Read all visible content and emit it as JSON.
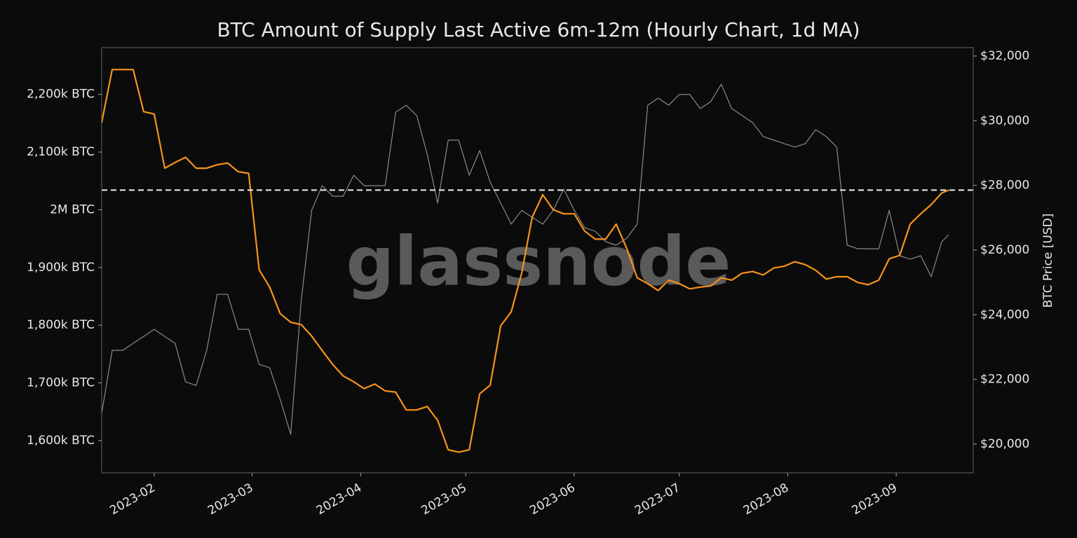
{
  "chart_data": {
    "type": "line",
    "title": "BTC Amount of Supply Last Active 6m-12m (Hourly Chart, 1d MA)",
    "y2label": "BTC Price [USD]",
    "watermark": "glassnode",
    "x": [
      "2023-01-17",
      "2023-01-20",
      "2023-01-23",
      "2023-01-26",
      "2023-01-29",
      "2023-02-01",
      "2023-02-04",
      "2023-02-07",
      "2023-02-10",
      "2023-02-13",
      "2023-02-16",
      "2023-02-19",
      "2023-02-22",
      "2023-02-25",
      "2023-02-28",
      "2023-03-03",
      "2023-03-06",
      "2023-03-09",
      "2023-03-12",
      "2023-03-15",
      "2023-03-18",
      "2023-03-21",
      "2023-03-24",
      "2023-03-27",
      "2023-03-30",
      "2023-04-02",
      "2023-04-05",
      "2023-04-08",
      "2023-04-11",
      "2023-04-14",
      "2023-04-17",
      "2023-04-20",
      "2023-04-23",
      "2023-04-26",
      "2023-04-29",
      "2023-05-02",
      "2023-05-05",
      "2023-05-08",
      "2023-05-11",
      "2023-05-14",
      "2023-05-17",
      "2023-05-20",
      "2023-05-23",
      "2023-05-26",
      "2023-05-29",
      "2023-06-01",
      "2023-06-04",
      "2023-06-07",
      "2023-06-10",
      "2023-06-13",
      "2023-06-16",
      "2023-06-19",
      "2023-06-22",
      "2023-06-25",
      "2023-06-28",
      "2023-07-01",
      "2023-07-04",
      "2023-07-07",
      "2023-07-10",
      "2023-07-13",
      "2023-07-16",
      "2023-07-19",
      "2023-07-22",
      "2023-07-25",
      "2023-07-28",
      "2023-07-31",
      "2023-08-03",
      "2023-08-06",
      "2023-08-09",
      "2023-08-12",
      "2023-08-15",
      "2023-08-18",
      "2023-08-21",
      "2023-08-24",
      "2023-08-27",
      "2023-08-30",
      "2023-09-02",
      "2023-09-05",
      "2023-09-08",
      "2023-09-11",
      "2023-09-14",
      "2023-09-16"
    ],
    "series": [
      {
        "color": "#f7931a",
        "values": [
          2151000,
          2243000,
          2243000,
          2243000,
          2170000,
          2166000,
          2072000,
          2082000,
          2091000,
          2072000,
          2072000,
          2078000,
          2081000,
          2066000,
          2063000,
          1896000,
          1866000,
          1820000,
          1805000,
          1801000,
          1781000,
          1756000,
          1732000,
          1712000,
          1702000,
          1690000,
          1698000,
          1686000,
          1684000,
          1653000,
          1653000,
          1659000,
          1635000,
          1584000,
          1580000,
          1584000,
          1681000,
          1696000,
          1799000,
          1823000,
          1890000,
          1987000,
          2026000,
          2000000,
          1993000,
          1993000,
          1963000,
          1949000,
          1949000,
          1975000,
          1933000,
          1882000,
          1872000,
          1860000,
          1878000,
          1872000,
          1863000,
          1866000,
          1868000,
          1882000,
          1878000,
          1890000,
          1893000,
          1887000,
          1899000,
          1902000,
          1910000,
          1905000,
          1895000,
          1880000,
          1884000,
          1884000,
          1874000,
          1870000,
          1878000,
          1915000,
          1921000,
          1975000,
          1993000,
          2009000,
          2029000,
          2034000
        ]
      },
      {
        "color": "#8a8a8a",
        "axis": "y2",
        "values": [
          20950,
          22900,
          22900,
          23115,
          23330,
          23550,
          23330,
          23115,
          21920,
          21815,
          22900,
          24630,
          24630,
          23550,
          23550,
          22465,
          22360,
          21380,
          20300,
          24415,
          27230,
          27990,
          27665,
          27665,
          28315,
          27990,
          27990,
          27990,
          30265,
          30480,
          30160,
          28965,
          27450,
          29400,
          29400,
          28315,
          29075,
          28100,
          27450,
          26800,
          27230,
          27015,
          26800,
          27230,
          27885,
          27230,
          26690,
          26580,
          26260,
          26150,
          26365,
          26800,
          30480,
          30700,
          30480,
          30810,
          30810,
          30375,
          30590,
          31130,
          30375,
          30160,
          29940,
          29510,
          29400,
          29290,
          29185,
          29290,
          29725,
          29510,
          29185,
          26150,
          26040,
          26040,
          26040,
          27230,
          25825,
          25715,
          25825,
          25175,
          26260,
          26475
        ]
      }
    ],
    "hline": 2034000,
    "xlim": [
      "2023-01-17",
      "2023-09-23"
    ],
    "xticks": [
      {
        "value": "2023-02-01",
        "label": "2023-02"
      },
      {
        "value": "2023-03-01",
        "label": "2023-03"
      },
      {
        "value": "2023-04-01",
        "label": "2023-04"
      },
      {
        "value": "2023-05-01",
        "label": "2023-05"
      },
      {
        "value": "2023-06-01",
        "label": "2023-06"
      },
      {
        "value": "2023-07-01",
        "label": "2023-07"
      },
      {
        "value": "2023-08-01",
        "label": "2023-08"
      },
      {
        "value": "2023-09-01",
        "label": "2023-09"
      }
    ],
    "ylim": [
      1544000,
      2281000
    ],
    "yticks": [
      {
        "value": 1600000,
        "label": "1,600k BTC"
      },
      {
        "value": 1700000,
        "label": "1,700k BTC"
      },
      {
        "value": 1800000,
        "label": "1,800k BTC"
      },
      {
        "value": 1900000,
        "label": "1,900k BTC"
      },
      {
        "value": 2000000,
        "label": "2M BTC"
      },
      {
        "value": 2100000,
        "label": "2,100k BTC"
      },
      {
        "value": 2200000,
        "label": "2,200k BTC"
      }
    ],
    "y2lim": [
      19110,
      32260
    ],
    "y2ticks": [
      {
        "value": 20000,
        "label": "$20,000"
      },
      {
        "value": 22000,
        "label": "$22,000"
      },
      {
        "value": 24000,
        "label": "$24,000"
      },
      {
        "value": 26000,
        "label": "$26,000"
      },
      {
        "value": 28000,
        "label": "$28,000"
      },
      {
        "value": 30000,
        "label": "$30,000"
      },
      {
        "value": 32000,
        "label": "$32,000"
      }
    ]
  }
}
